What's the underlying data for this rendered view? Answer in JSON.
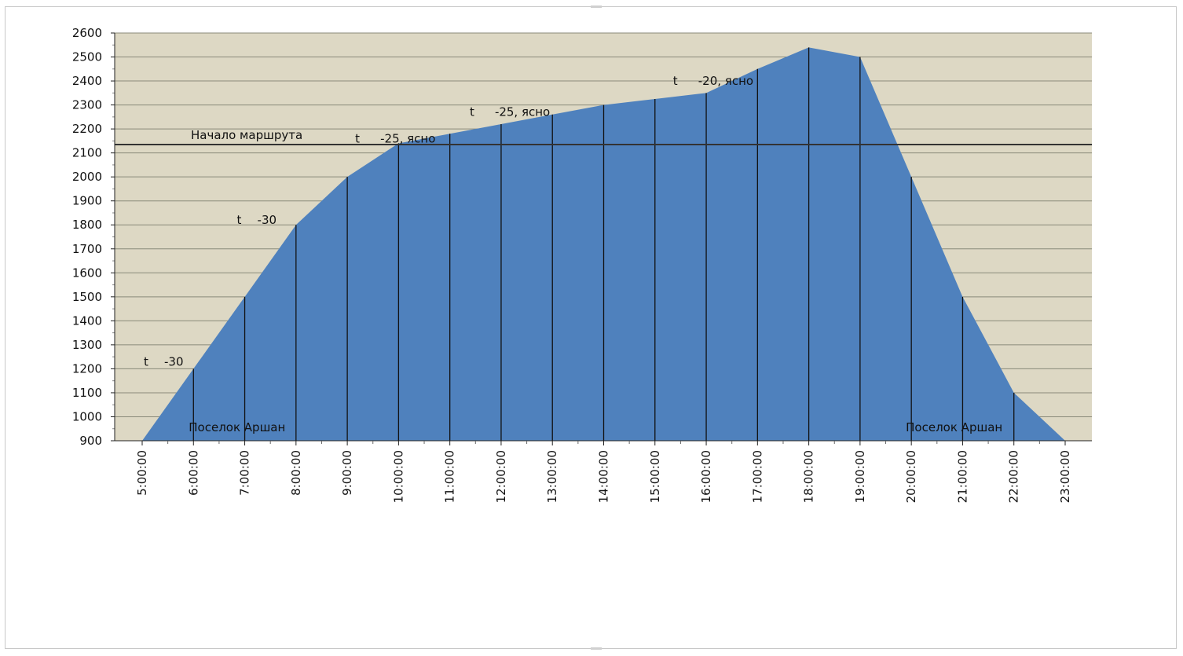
{
  "chart_data": {
    "type": "area",
    "title": "",
    "xlabel": "",
    "ylabel": "",
    "x": [
      "5:00:00",
      "6:00:00",
      "7:00:00",
      "8:00:00",
      "9:00:00",
      "10:00:00",
      "11:00:00",
      "12:00:00",
      "13:00:00",
      "14:00:00",
      "15:00:00",
      "16:00:00",
      "17:00:00",
      "18:00:00",
      "19:00:00",
      "20:00:00",
      "21:00:00",
      "22:00:00",
      "23:00:00"
    ],
    "series": [
      {
        "values": [
          900,
          1200,
          1500,
          1800,
          2000,
          2140,
          2180,
          2220,
          2260,
          2300,
          2325,
          2350,
          2450,
          2540,
          2500,
          2000,
          1500,
          1100,
          900
        ]
      }
    ],
    "ylim": [
      900,
      2600
    ],
    "yticks": [
      900,
      1000,
      1100,
      1200,
      1300,
      1400,
      1500,
      1600,
      1700,
      1800,
      1900,
      2000,
      2100,
      2200,
      2300,
      2400,
      2500,
      2600
    ],
    "grid": true,
    "legend": "none",
    "reference_line": {
      "value": 2135,
      "label": "Начало маршрута"
    },
    "annotations": [
      {
        "t": "t",
        "text": "-30",
        "x": "5:00:00",
        "y": 1230
      },
      {
        "t": "t",
        "text": "-30",
        "x": "7:00:00",
        "y": 1820
      },
      {
        "t": "t",
        "text": "-25, ясно",
        "x": "9:00:00",
        "y": 2160
      },
      {
        "t": "t",
        "text": "-25, ясно",
        "x": "12:00:00",
        "y": 2270
      },
      {
        "t": "t",
        "text": "-20, ясно",
        "x": "15:00:00",
        "y": 2400
      },
      {
        "text": "Поселок Аршан",
        "x": "6:00:00",
        "y": 940
      },
      {
        "text": "Поселок Аршан",
        "x": "20:00:00",
        "y": 940
      }
    ],
    "colors": {
      "area": "#4f81bd",
      "plot_bg": "#ddd8c4",
      "grid": "#8a8a7a",
      "axis": "#222222",
      "ref_line": "#333333"
    }
  }
}
